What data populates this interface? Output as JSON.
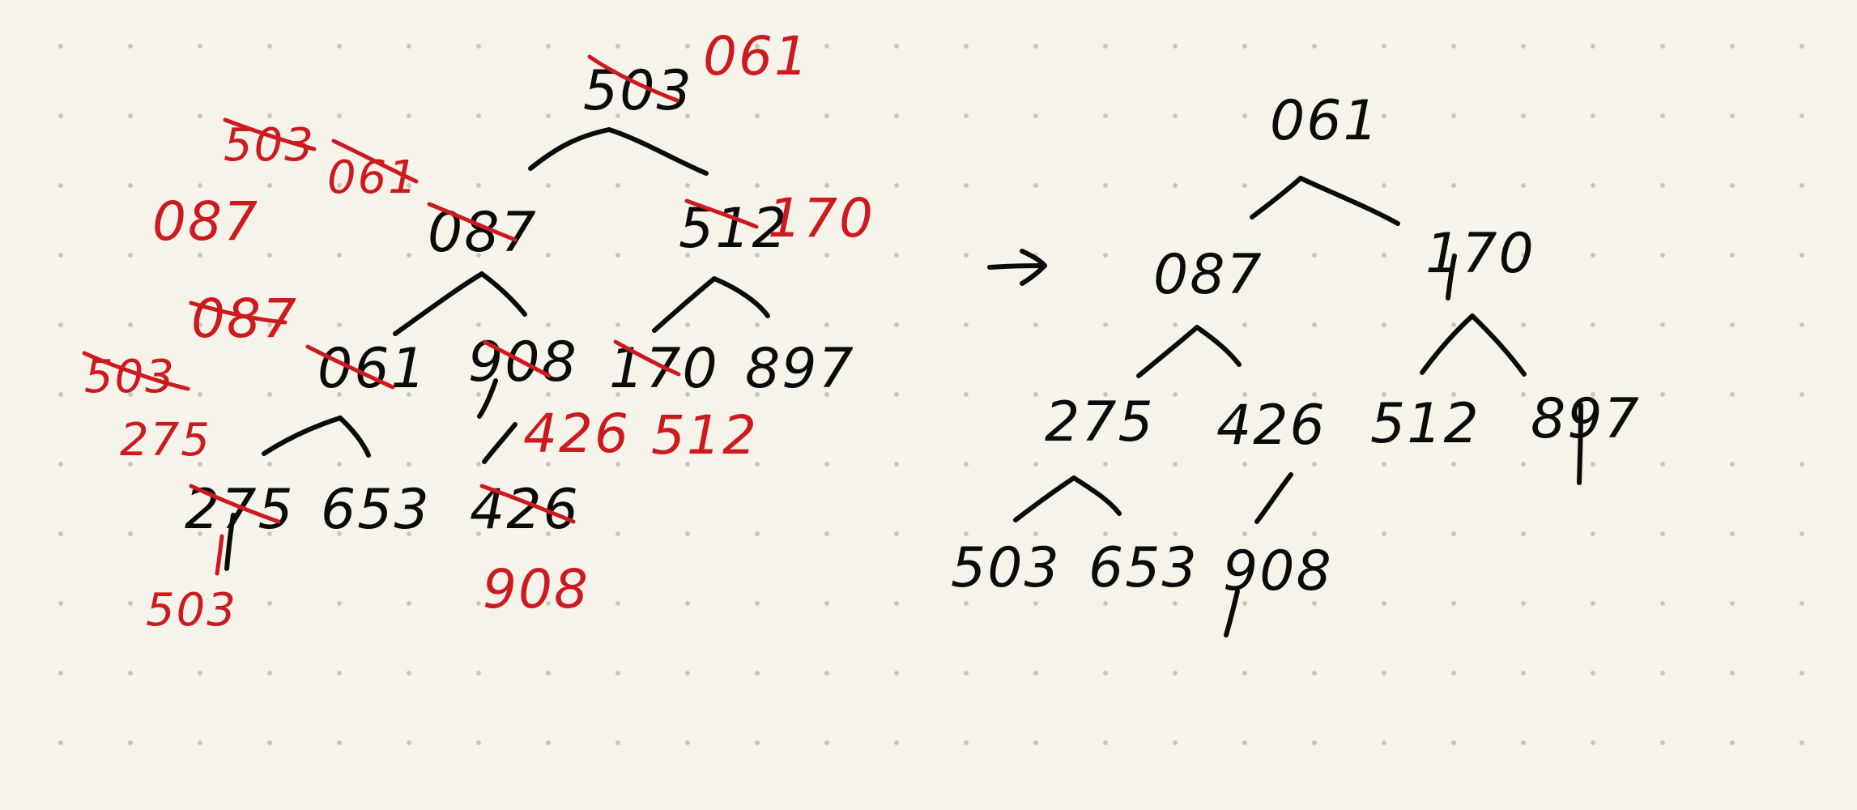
{
  "left_tree": {
    "nodes": [
      {
        "id": "root",
        "label": "503"
      },
      {
        "id": "l",
        "label": "087"
      },
      {
        "id": "r",
        "label": "512"
      },
      {
        "id": "ll",
        "label": "061"
      },
      {
        "id": "lr",
        "label": "908"
      },
      {
        "id": "rl",
        "label": "170"
      },
      {
        "id": "rr",
        "label": "897"
      },
      {
        "id": "lll",
        "label": "275"
      },
      {
        "id": "llr",
        "label": "653"
      },
      {
        "id": "lrl",
        "label": "426"
      }
    ],
    "annotations": [
      {
        "id": "a-root",
        "text": "061"
      },
      {
        "id": "a-r",
        "text": "170"
      },
      {
        "id": "a-stack1",
        "text": "503"
      },
      {
        "id": "a-stack2",
        "text": "061"
      },
      {
        "id": "a-stack3",
        "text": "087"
      },
      {
        "id": "a-ll1",
        "text": "087"
      },
      {
        "id": "a-ll2",
        "text": "503"
      },
      {
        "id": "a-ll3",
        "text": "275"
      },
      {
        "id": "a-lll",
        "text": "503"
      },
      {
        "id": "a-lr",
        "text": "426"
      },
      {
        "id": "a-rl",
        "text": "512"
      },
      {
        "id": "a-lrl",
        "text": "908"
      }
    ]
  },
  "right_tree": {
    "nodes": [
      {
        "id": "root",
        "label": "061"
      },
      {
        "id": "l",
        "label": "087"
      },
      {
        "id": "r",
        "label": "170"
      },
      {
        "id": "ll",
        "label": "275"
      },
      {
        "id": "lr",
        "label": "426"
      },
      {
        "id": "rl",
        "label": "512"
      },
      {
        "id": "rr",
        "label": "897"
      },
      {
        "id": "lll",
        "label": "503"
      },
      {
        "id": "llr",
        "label": "653"
      },
      {
        "id": "lrl",
        "label": "908"
      }
    ]
  },
  "colors": {
    "ink": "#0b0b0b",
    "correction": "#cc1a1f",
    "paper": "#f6f4ea",
    "grid_dot": "#c8c6bd"
  },
  "icons": {
    "transform_arrow": "right-arrow-icon"
  }
}
